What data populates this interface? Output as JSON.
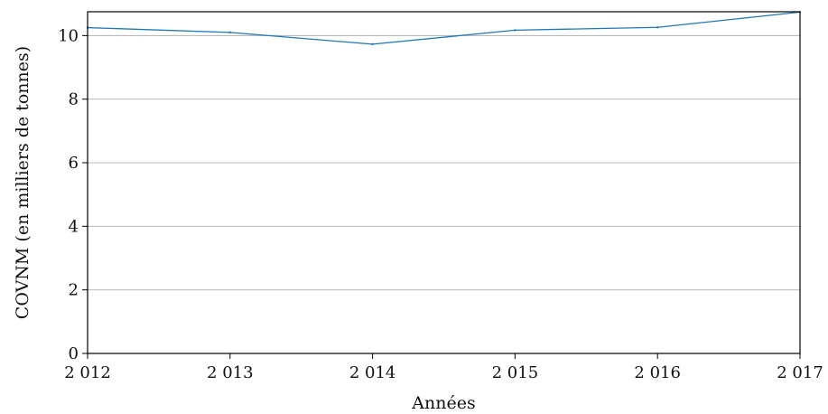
{
  "chart_data": {
    "type": "line",
    "title": "",
    "xlabel": "Années",
    "ylabel": "COVNM (en milliers de tonnes)",
    "x": [
      2012,
      2013,
      2014,
      2015,
      2016,
      2017
    ],
    "x_tick_labels": [
      "2 012",
      "2 013",
      "2 014",
      "2 015",
      "2 016",
      "2 017"
    ],
    "y_ticks": [
      0,
      2,
      4,
      6,
      8,
      10
    ],
    "y_tick_labels": [
      "0",
      "2",
      "4",
      "6",
      "8",
      "10"
    ],
    "ylim": [
      0,
      10.75
    ],
    "xlim": [
      2012,
      2017
    ],
    "grid": "horizontal",
    "series": [
      {
        "values": [
          10.25,
          10.1,
          9.73,
          10.17,
          10.26,
          10.74
        ],
        "color": "#1f77b4"
      }
    ]
  }
}
